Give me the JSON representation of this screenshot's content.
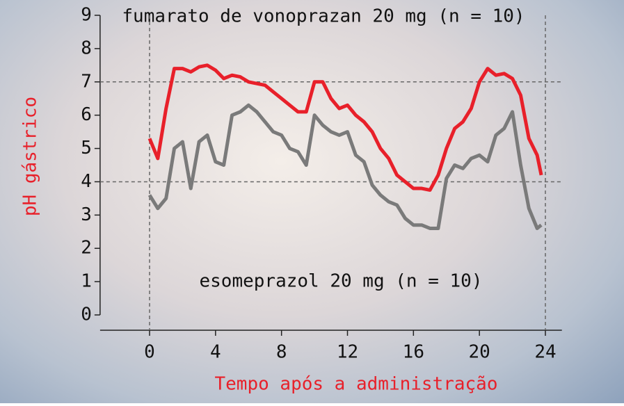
{
  "chart_data": {
    "type": "line",
    "title": "fumarato de vonoprazan 20 mg (n = 10)",
    "annotation": "esomeprazol 20 mg (n = 10)",
    "xlabel": "Tempo após a administração",
    "ylabel": "pH gástrico",
    "x": [
      0,
      0.5,
      1,
      1.5,
      2,
      2.5,
      3,
      3.5,
      4,
      4.5,
      5,
      5.5,
      6,
      6.5,
      7,
      7.5,
      8,
      8.5,
      9,
      9.5,
      10,
      10.5,
      11,
      11.5,
      12,
      12.5,
      13,
      13.5,
      14,
      14.5,
      15,
      15.5,
      16,
      16.5,
      17,
      17.5,
      18,
      18.5,
      19,
      19.5,
      20,
      20.5,
      21,
      21.5,
      22,
      22.5,
      23,
      23.5,
      23.75
    ],
    "series": [
      {
        "name": "fumarato de vonoprazan 20 mg (n = 10)",
        "color": "#e8202a",
        "values": [
          5.3,
          4.7,
          6.2,
          7.4,
          7.4,
          7.3,
          7.45,
          7.5,
          7.35,
          7.1,
          7.2,
          7.15,
          7.0,
          6.95,
          6.9,
          6.7,
          6.5,
          6.3,
          6.1,
          6.1,
          7.0,
          7.0,
          6.5,
          6.2,
          6.3,
          6.0,
          5.8,
          5.5,
          5.0,
          4.7,
          4.2,
          4.0,
          3.8,
          3.8,
          3.75,
          4.2,
          5.0,
          5.6,
          5.8,
          6.2,
          7.0,
          7.4,
          7.2,
          7.25,
          7.1,
          6.6,
          5.3,
          4.8,
          4.2
        ]
      },
      {
        "name": "esomeprazol 20 mg (n = 10)",
        "color": "#7a7a7a",
        "values": [
          3.6,
          3.2,
          3.5,
          5.0,
          5.2,
          3.8,
          5.2,
          5.4,
          4.6,
          4.5,
          6.0,
          6.1,
          6.3,
          6.1,
          5.8,
          5.5,
          5.4,
          5.0,
          4.9,
          4.5,
          6.0,
          5.7,
          5.5,
          5.4,
          5.5,
          4.8,
          4.6,
          3.9,
          3.6,
          3.4,
          3.3,
          2.9,
          2.7,
          2.7,
          2.6,
          2.6,
          4.1,
          4.5,
          4.4,
          4.7,
          4.8,
          4.6,
          5.4,
          5.6,
          6.1,
          4.5,
          3.2,
          2.6,
          2.7
        ]
      }
    ],
    "xlim": [
      -3,
      25
    ],
    "xticks": [
      0,
      4,
      8,
      12,
      16,
      20,
      24
    ],
    "ylim": [
      0,
      9
    ],
    "yticks": [
      0,
      1,
      2,
      3,
      4,
      5,
      6,
      7,
      8,
      9
    ],
    "hlines": [
      4,
      7
    ],
    "vlines": [
      0,
      24
    ],
    "label_color": "#e8202a"
  }
}
